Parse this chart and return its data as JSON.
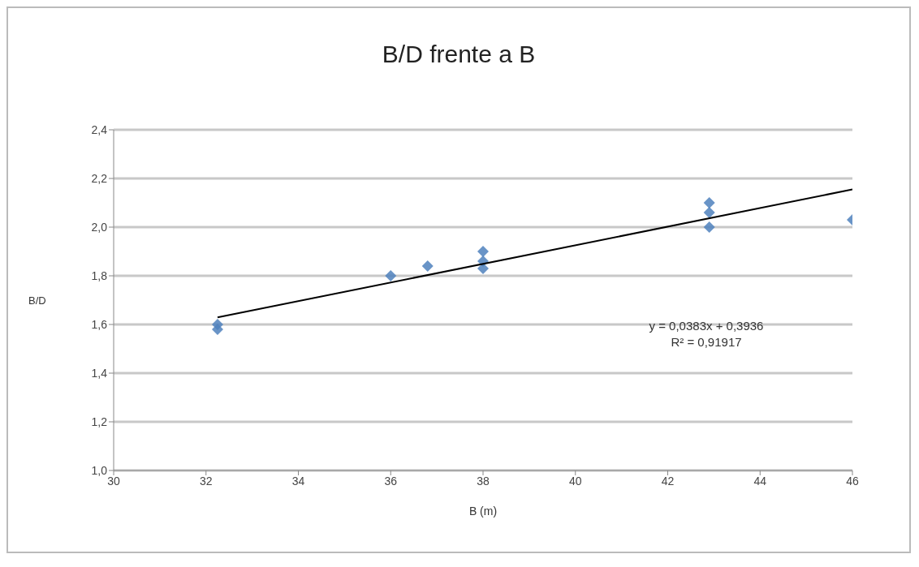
{
  "chart_data": {
    "type": "scatter",
    "title": "B/D frente a B",
    "xlabel": "B (m)",
    "ylabel": "B/D",
    "xlim": [
      30,
      46
    ],
    "xticks": [
      30,
      32,
      34,
      36,
      38,
      40,
      42,
      44,
      46
    ],
    "ylim": [
      1.0,
      2.4
    ],
    "yticks": [
      {
        "value": 1.0,
        "label": "1,0"
      },
      {
        "value": 1.2,
        "label": "1,2"
      },
      {
        "value": 1.4,
        "label": "1,4"
      },
      {
        "value": 1.6,
        "label": "1,6"
      },
      {
        "value": 1.8,
        "label": "1,8"
      },
      {
        "value": 2.0,
        "label": "2,0"
      },
      {
        "value": 2.2,
        "label": "2,2"
      },
      {
        "value": 2.4,
        "label": "2,4"
      }
    ],
    "grid": "y",
    "marker": "diamond",
    "series": [
      {
        "color": "#4f81bd",
        "x": [
          32.25,
          32.25,
          36,
          36.8,
          38,
          38,
          38,
          42.9,
          42.9,
          42.9,
          46
        ],
        "values": [
          1.6,
          1.58,
          1.8,
          1.84,
          1.9,
          1.86,
          1.83,
          2.1,
          2.06,
          2.0,
          2.03
        ]
      },
      {
        "type": "line",
        "color": "#000000",
        "marker": "none",
        "line_style": "solid",
        "x": [
          32.25,
          46
        ],
        "values": [
          1.629,
          2.155
        ]
      }
    ],
    "annotations": [
      "y = 0,0383x + 0,3936",
      "R² = 0,91917"
    ]
  }
}
